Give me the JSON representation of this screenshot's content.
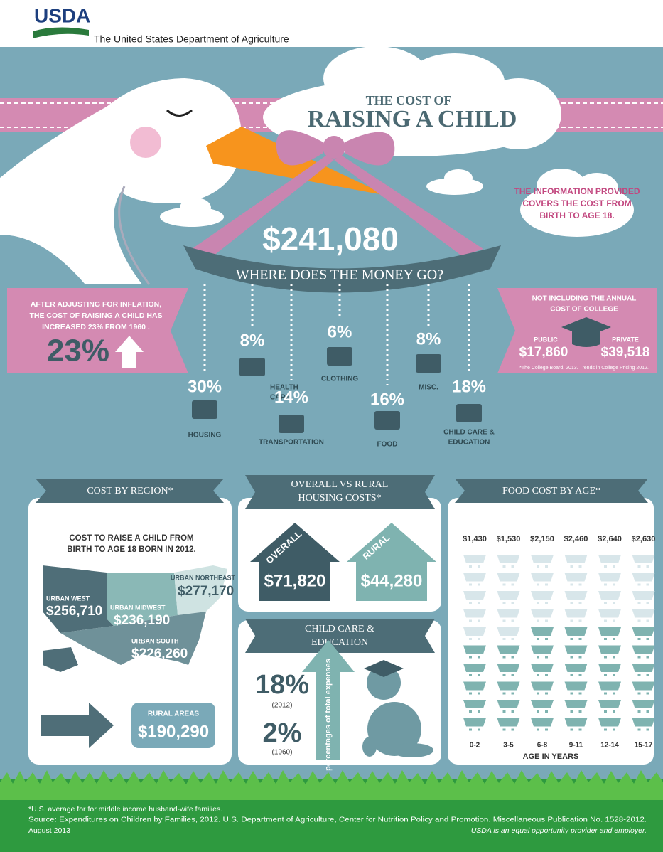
{
  "header": {
    "logo": "USDA",
    "agency": "The United States Department of Agriculture"
  },
  "title": {
    "line1": "THE COST OF",
    "line2": "RAISING A CHILD"
  },
  "coverage_note": [
    "THE INFORMATION PROVIDED",
    "COVERS THE COST FROM",
    "BIRTH TO AGE 18."
  ],
  "total": "$241,080",
  "subtitle": "WHERE DOES THE MONEY GO?",
  "inflation": {
    "text": [
      "AFTER ADJUSTING FOR INFLATION,",
      "THE COST OF RAISING A CHILD HAS",
      "INCREASED 23% FROM 1960 ."
    ],
    "value": "23%"
  },
  "college": {
    "note": [
      "NOT INCLUDING THE ANNUAL",
      "COST OF COLLEGE"
    ],
    "public_label": "PUBLIC",
    "public": "$17,860",
    "private_label": "PRIVATE",
    "private": "$39,518",
    "source": "*The College Board, 2013. Trends in College Pricing 2012."
  },
  "expenses": [
    {
      "value": "30%",
      "label": [
        "HOUSING"
      ]
    },
    {
      "value": "8%",
      "label": [
        "HEALTH",
        "CARE"
      ]
    },
    {
      "value": "14%",
      "label": [
        "TRANSPORTATION"
      ]
    },
    {
      "value": "6%",
      "label": [
        "CLOTHING"
      ]
    },
    {
      "value": "16%",
      "label": [
        "FOOD"
      ]
    },
    {
      "value": "8%",
      "label": [
        "MISC."
      ]
    },
    {
      "value": "18%",
      "label": [
        "CHILD CARE &",
        "EDUCATION"
      ]
    }
  ],
  "region": {
    "heading": "COST BY REGION*",
    "subheading": [
      "COST TO RAISE A CHILD FROM",
      "BIRTH TO AGE 18 BORN IN 2012."
    ],
    "areas": [
      {
        "name": "URBAN WEST",
        "value": "$256,710"
      },
      {
        "name": "URBAN MIDWEST",
        "value": "$236,190"
      },
      {
        "name": "URBAN NORTHEAST",
        "value": "$277,170"
      },
      {
        "name": "URBAN SOUTH",
        "value": "$226,260"
      },
      {
        "name": "RURAL AREAS",
        "value": "$190,290"
      }
    ]
  },
  "housing": {
    "heading": [
      "OVERALL VS RURAL",
      "HOUSING COSTS*"
    ],
    "overall_label": "OVERALL",
    "overall": "$71,820",
    "rural_label": "RURAL",
    "rural": "$44,280"
  },
  "childcare": {
    "heading": [
      "CHILD CARE &",
      "EDUCATION"
    ],
    "now": "18%",
    "now_year": "(2012)",
    "then": "2%",
    "then_year": "(1960)",
    "axis_note": "percentages of total expenses"
  },
  "food": {
    "heading": "FOOD COST BY AGE*",
    "amounts": [
      "$1,430",
      "$1,530",
      "$2,150",
      "$2,460",
      "$2,640",
      "$2,630"
    ],
    "ages": [
      "0-2",
      "3-5",
      "6-8",
      "9-11",
      "12-14",
      "15-17"
    ],
    "axis_label": "AGE IN YEARS"
  },
  "footer": {
    "note": "*U.S. average for for middle income husband-wife families.",
    "source": "Source: Expenditures on Children by Families, 2012. U.S. Department of Agriculture, Center for Nutrition Policy and Promotion. Miscellaneous Publication No. 1528-2012.",
    "date": "August 2013",
    "eeo": "USDA is an equal opportunity provider and employer."
  }
}
